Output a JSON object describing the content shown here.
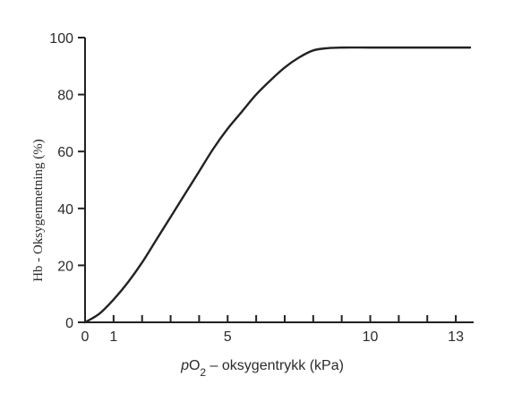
{
  "chart_data": {
    "type": "line",
    "title": "",
    "xlabel": {
      "prefix": "p",
      "main": "O",
      "subscript": "2",
      "suffix": " – oksygentrykk (kPa)"
    },
    "ylabel": "Hb - Oksygenmetning (%)",
    "xlim": [
      0,
      13.5
    ],
    "ylim": [
      0,
      100
    ],
    "x_ticks_labeled": [
      0,
      1,
      5,
      10,
      13
    ],
    "x_ticks_minor": [
      2,
      3,
      4,
      6,
      7,
      8,
      9,
      11,
      12
    ],
    "y_ticks": [
      0,
      20,
      40,
      60,
      80,
      100
    ],
    "grid": false,
    "series": [
      {
        "x": [
          0,
          0.5,
          1,
          1.5,
          2,
          2.5,
          3,
          3.5,
          4,
          4.5,
          5,
          5.5,
          6,
          6.5,
          7,
          7.5,
          8,
          8.5,
          9,
          10,
          11,
          12,
          13,
          13.5
        ],
        "y": [
          0,
          3,
          8,
          14,
          21,
          29,
          37,
          45,
          53,
          61,
          68,
          74,
          80,
          85,
          89.5,
          93,
          95.5,
          96.3,
          96.5,
          96.5,
          96.5,
          96.5,
          96.5,
          96.5
        ]
      }
    ],
    "colors": {
      "line": "#222222",
      "axis": "#222222",
      "text": "#2b2b2b"
    }
  }
}
